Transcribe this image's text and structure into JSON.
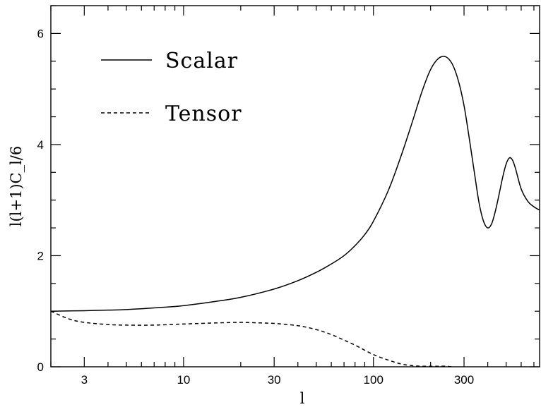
{
  "chart_data": {
    "type": "line",
    "title": "",
    "xlabel": "l",
    "ylabel": "l(l+1)C_l/6",
    "xscale": "log",
    "xlim": [
      2,
      750
    ],
    "ylim": [
      0,
      6.5
    ],
    "x_ticks": [
      3,
      10,
      30,
      100,
      300
    ],
    "x_tick_labels": [
      "3",
      "10",
      "30",
      "100",
      "300"
    ],
    "y_ticks": [
      0,
      2,
      4,
      6
    ],
    "y_tick_labels": [
      "0",
      "2",
      "4",
      "6"
    ],
    "grid": false,
    "legend_position": "top-left",
    "series": [
      {
        "name": "Scalar",
        "style": "solid",
        "color": "#000000",
        "x": [
          2,
          3,
          4,
          5,
          7,
          10,
          15,
          20,
          30,
          40,
          50,
          60,
          70,
          80,
          90,
          100,
          120,
          140,
          160,
          180,
          200,
          220,
          240,
          260,
          280,
          300,
          320,
          340,
          360,
          380,
          400,
          420,
          440,
          460,
          480,
          500,
          520,
          540,
          560,
          600,
          650,
          700,
          750
        ],
        "values": [
          1.0,
          1.01,
          1.02,
          1.03,
          1.06,
          1.1,
          1.18,
          1.25,
          1.4,
          1.55,
          1.7,
          1.85,
          2.0,
          2.18,
          2.38,
          2.62,
          3.18,
          3.8,
          4.4,
          4.95,
          5.35,
          5.55,
          5.58,
          5.45,
          5.15,
          4.7,
          4.1,
          3.5,
          2.95,
          2.62,
          2.5,
          2.58,
          2.82,
          3.12,
          3.42,
          3.65,
          3.76,
          3.72,
          3.57,
          3.2,
          2.98,
          2.88,
          2.82
        ]
      },
      {
        "name": "Tensor",
        "style": "dashed",
        "color": "#000000",
        "x": [
          2,
          2.5,
          3,
          4,
          5,
          7,
          10,
          15,
          20,
          25,
          30,
          40,
          50,
          60,
          70,
          80,
          100,
          120,
          140,
          160,
          180,
          200,
          220,
          240,
          260
        ],
        "values": [
          1.0,
          0.86,
          0.8,
          0.76,
          0.75,
          0.75,
          0.77,
          0.79,
          0.8,
          0.79,
          0.78,
          0.74,
          0.67,
          0.58,
          0.48,
          0.39,
          0.22,
          0.12,
          0.05,
          0.02,
          0.01,
          0.01,
          0.01,
          0.01,
          0.0
        ]
      }
    ]
  }
}
